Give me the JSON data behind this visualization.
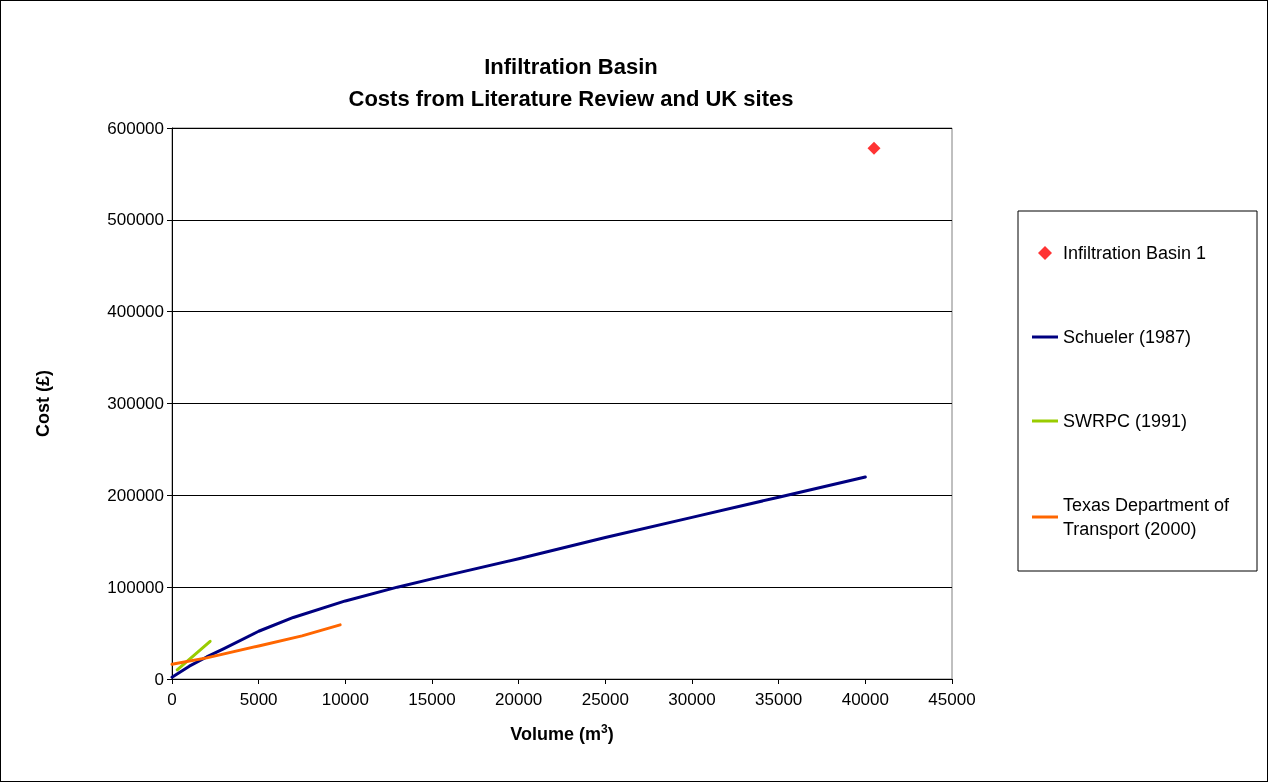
{
  "chart_data": {
    "type": "line",
    "title": "Infiltration Basin\nCosts from Literature Review and UK sites",
    "xlabel": "Volume (m$^{3}$)",
    "ylabel": "Cost (£)",
    "xlim": [
      0,
      45000
    ],
    "xticks": [
      0,
      5000,
      10000,
      15000,
      20000,
      25000,
      30000,
      35000,
      40000,
      45000
    ],
    "ylim": [
      0,
      600000
    ],
    "yticks": [
      0,
      100000,
      200000,
      300000,
      400000,
      500000,
      600000
    ],
    "grid": "y",
    "legend": "right",
    "series": [
      {
        "name": "Infiltration Basin 1",
        "type": "scatter",
        "marker": "diamond",
        "color": "#ff0000",
        "x": [
          40500
        ],
        "values": [
          578000
        ]
      },
      {
        "name": "Schueler (1987)",
        "type": "line",
        "marker": "none",
        "color": "#000080",
        "x": [
          0,
          500,
          1000,
          2000,
          3000,
          5000,
          7000,
          10000,
          13000,
          15000,
          20000,
          25000,
          30000,
          35000,
          40000
        ],
        "values": [
          2000,
          8000,
          14000,
          24000,
          33000,
          52000,
          67000,
          85000,
          100000,
          109000,
          131000,
          154000,
          176000,
          198000,
          220000
        ]
      },
      {
        "name": "SWRPC (1991)",
        "type": "line",
        "marker": "none",
        "color": "#99cc00",
        "x": [
          300,
          2200
        ],
        "values": [
          10000,
          41000
        ]
      },
      {
        "name": "Texas Department of Transport (2000)",
        "type": "line",
        "marker": "none",
        "color": "#ff6600",
        "x": [
          0,
          2000,
          5000,
          7500,
          9700
        ],
        "values": [
          16000,
          23000,
          36000,
          47000,
          59000
        ]
      }
    ]
  }
}
